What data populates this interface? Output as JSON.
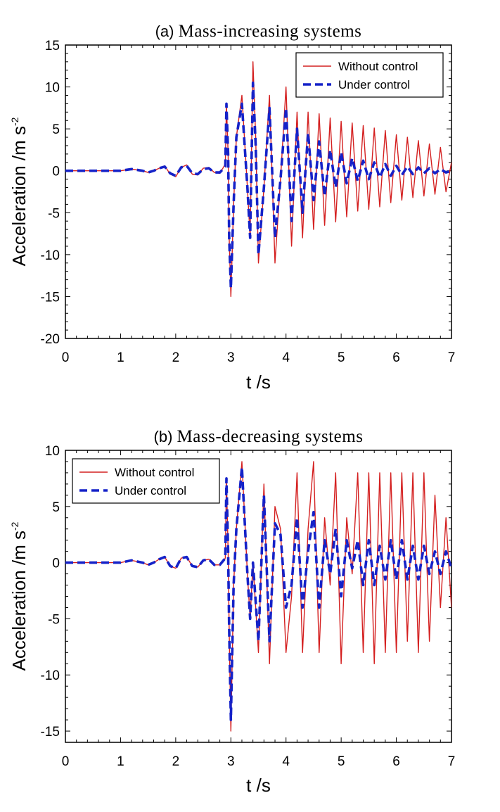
{
  "colors": {
    "without": "#d42020",
    "under": "#1522c8"
  },
  "chart_data": [
    {
      "type": "line",
      "title": {
        "prefix": "(a)",
        "text": "Mass-increasing systems"
      },
      "xlabel": "t /s",
      "ylabel": {
        "text": "Acceleration /m s",
        "sup": "-2"
      },
      "xlim": [
        0,
        7
      ],
      "ylim": [
        -20,
        15
      ],
      "xticks": [
        "0",
        "1",
        "2",
        "3",
        "4",
        "5",
        "6",
        "7"
      ],
      "yticks": [
        "15",
        "10",
        "5",
        "0",
        "-5",
        "-10",
        "-15",
        "-20"
      ],
      "legend": {
        "position": "top-right",
        "without": "Without control",
        "under": "Under control"
      },
      "series": [
        {
          "name": "Without control",
          "x": [
            0,
            0.5,
            1,
            1.2,
            1.4,
            1.5,
            1.6,
            1.7,
            1.8,
            1.9,
            2.0,
            2.1,
            2.2,
            2.3,
            2.4,
            2.5,
            2.6,
            2.7,
            2.8,
            2.9,
            2.92,
            2.95,
            2.97,
            3.0,
            3.05,
            3.1,
            3.2,
            3.3,
            3.35,
            3.4,
            3.45,
            3.5,
            3.6,
            3.7,
            3.8,
            3.9,
            4.0,
            4.1,
            4.2,
            4.3,
            4.4,
            4.5,
            4.6,
            4.7,
            4.8,
            4.9,
            5.0,
            5.1,
            5.2,
            5.3,
            5.4,
            5.5,
            5.6,
            5.7,
            5.8,
            5.9,
            6.0,
            6.1,
            6.2,
            6.3,
            6.4,
            6.5,
            6.6,
            6.7,
            6.8,
            6.9,
            7.0
          ],
          "y": [
            0,
            0,
            0,
            0.2,
            0,
            -0.2,
            0,
            0.3,
            0.6,
            -0.4,
            -0.7,
            0.4,
            0.7,
            -0.4,
            -0.5,
            0.3,
            0.4,
            -0.2,
            -0.3,
            0.8,
            8,
            2,
            -8,
            -15,
            -4,
            4,
            9,
            -2,
            -8,
            13,
            4,
            -11,
            -2,
            9,
            -11,
            -1,
            10,
            -9,
            7,
            -8,
            7,
            -7,
            6.8,
            -6.5,
            6.3,
            -6.1,
            5.9,
            -5.5,
            5.7,
            -4.8,
            5.4,
            -4.6,
            5.1,
            -4.3,
            4.8,
            -3.8,
            4.3,
            -3.5,
            4.0,
            -3.2,
            3.6,
            -3.0,
            3.2,
            -2.8,
            2.8,
            -2.5,
            1.0
          ]
        },
        {
          "name": "Under control",
          "x": [
            0,
            0.5,
            1,
            1.2,
            1.4,
            1.5,
            1.6,
            1.7,
            1.8,
            1.9,
            2.0,
            2.1,
            2.2,
            2.3,
            2.4,
            2.5,
            2.6,
            2.7,
            2.8,
            2.9,
            2.92,
            2.95,
            2.97,
            3.0,
            3.05,
            3.1,
            3.2,
            3.3,
            3.35,
            3.4,
            3.45,
            3.5,
            3.6,
            3.7,
            3.8,
            3.9,
            4.0,
            4.1,
            4.2,
            4.3,
            4.4,
            4.5,
            4.6,
            4.7,
            4.8,
            4.9,
            5.0,
            5.1,
            5.2,
            5.3,
            5.4,
            5.5,
            5.6,
            5.7,
            5.8,
            5.9,
            6.0,
            6.1,
            6.2,
            6.3,
            6.4,
            6.5,
            6.6,
            6.7,
            6.8,
            6.9,
            7.0
          ],
          "y": [
            0,
            0,
            0,
            0.2,
            0,
            -0.2,
            0,
            0.3,
            0.5,
            -0.3,
            -0.6,
            0.4,
            0.6,
            -0.3,
            -0.4,
            0.2,
            0.3,
            -0.2,
            -0.2,
            0.5,
            8,
            2,
            -8,
            -14,
            -4,
            4,
            8,
            -2,
            -8,
            10.5,
            3,
            -10,
            -2,
            7.5,
            -8,
            -1,
            7.5,
            -6,
            5,
            -5,
            4.5,
            -3.5,
            3.5,
            -3,
            2.5,
            -2,
            2.2,
            -1.5,
            1.5,
            -1.2,
            1.2,
            -1.0,
            1.0,
            -0.8,
            0.8,
            -0.6,
            0.6,
            -0.5,
            0.5,
            -0.4,
            0.4,
            -0.3,
            0.3,
            -0.3,
            0.2,
            -0.2,
            0.0
          ]
        }
      ]
    },
    {
      "type": "line",
      "title": {
        "prefix": "(b)",
        "text": "Mass-decreasing systems"
      },
      "xlabel": "t /s",
      "ylabel": {
        "text": "Acceleration /m s",
        "sup": "-2"
      },
      "xlim": [
        0,
        7
      ],
      "ylim": [
        -16,
        10
      ],
      "xticks": [
        "0",
        "1",
        "2",
        "3",
        "4",
        "5",
        "6",
        "7"
      ],
      "yticks": [
        "10",
        "5",
        "0",
        "-5",
        "-10",
        "-15"
      ],
      "legend": {
        "position": "top-left",
        "without": "Without control",
        "under": "Under control"
      },
      "series": [
        {
          "name": "Without control",
          "x": [
            0,
            0.5,
            1,
            1.2,
            1.4,
            1.5,
            1.6,
            1.7,
            1.8,
            1.9,
            2.0,
            2.1,
            2.2,
            2.3,
            2.4,
            2.5,
            2.6,
            2.7,
            2.8,
            2.9,
            2.92,
            2.95,
            2.97,
            3.0,
            3.05,
            3.1,
            3.2,
            3.3,
            3.35,
            3.4,
            3.5,
            3.6,
            3.7,
            3.8,
            3.9,
            4.0,
            4.1,
            4.2,
            4.3,
            4.4,
            4.5,
            4.6,
            4.7,
            4.8,
            4.9,
            5.0,
            5.1,
            5.2,
            5.3,
            5.4,
            5.5,
            5.6,
            5.7,
            5.8,
            5.9,
            6.0,
            6.1,
            6.2,
            6.3,
            6.4,
            6.5,
            6.6,
            6.7,
            6.8,
            6.9,
            7.0
          ],
          "y": [
            0,
            0,
            0,
            0.2,
            0,
            -0.2,
            0,
            0.3,
            0.5,
            -0.3,
            -0.5,
            0.4,
            0.5,
            -0.3,
            -0.4,
            0.2,
            0.3,
            -0.2,
            -0.2,
            0.4,
            7.5,
            1,
            -6,
            -15,
            -2,
            3,
            9,
            -1,
            -5,
            0,
            -8,
            7,
            -9,
            5,
            3,
            -8,
            -3,
            8,
            -8,
            3,
            9,
            -8,
            4,
            -2,
            8,
            -9,
            4,
            -1,
            8,
            -8,
            8,
            -9,
            8,
            -8,
            8,
            -8,
            8,
            -7,
            8,
            -8,
            8,
            -7,
            6,
            -4,
            4,
            -4
          ]
        },
        {
          "name": "Under control",
          "x": [
            0,
            0.5,
            1,
            1.2,
            1.4,
            1.5,
            1.6,
            1.7,
            1.8,
            1.9,
            2.0,
            2.1,
            2.2,
            2.3,
            2.4,
            2.5,
            2.6,
            2.7,
            2.8,
            2.9,
            2.92,
            2.95,
            2.97,
            3.0,
            3.05,
            3.1,
            3.2,
            3.3,
            3.35,
            3.4,
            3.5,
            3.6,
            3.7,
            3.8,
            3.9,
            4.0,
            4.1,
            4.2,
            4.3,
            4.4,
            4.5,
            4.6,
            4.7,
            4.8,
            4.9,
            5.0,
            5.1,
            5.2,
            5.3,
            5.4,
            5.5,
            5.6,
            5.7,
            5.8,
            5.9,
            6.0,
            6.1,
            6.2,
            6.3,
            6.4,
            6.5,
            6.6,
            6.7,
            6.8,
            6.9,
            7.0
          ],
          "y": [
            0,
            0,
            0,
            0.2,
            0,
            -0.2,
            0,
            0.3,
            0.5,
            -0.3,
            -0.5,
            0.4,
            0.5,
            -0.3,
            -0.4,
            0.2,
            0.3,
            -0.2,
            -0.2,
            0.4,
            7.5,
            1,
            -6,
            -14,
            -2,
            3,
            8.5,
            -1,
            -5,
            0,
            -7,
            6,
            -7,
            3.5,
            2.5,
            -4,
            -2,
            4,
            -4,
            1,
            4.5,
            -4,
            2,
            -1,
            3,
            -3,
            2,
            -0.5,
            2,
            -2,
            2,
            -2,
            1.5,
            -1.5,
            2,
            -1.5,
            2,
            -1.5,
            1.5,
            -1.5,
            1.5,
            -1,
            1,
            -1,
            1,
            -0.5
          ]
        }
      ]
    }
  ]
}
